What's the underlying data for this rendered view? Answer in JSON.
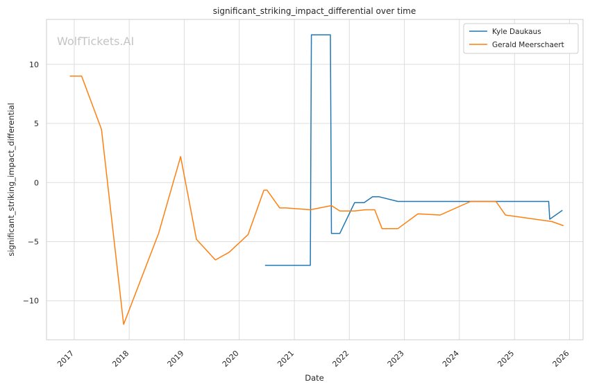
{
  "chart_data": {
    "type": "line",
    "title": "significant_striking_impact_differential over time",
    "xlabel": "Date",
    "ylabel": "significant_striking_impact_differential",
    "watermark": "WolfTickets.AI",
    "x_ticks": [
      "2017",
      "2018",
      "2019",
      "2020",
      "2021",
      "2022",
      "2023",
      "2024",
      "2025",
      "2026"
    ],
    "y_ticks": [
      10,
      5,
      0,
      -5,
      -10
    ],
    "y_tick_labels": [
      "10",
      "5",
      "0",
      "−5",
      "−10"
    ],
    "xlim": [
      "2016-07-01",
      "2026-04-01"
    ],
    "ylim": [
      -13.3,
      13.8
    ],
    "grid": true,
    "legend_position": "top-right",
    "series": [
      {
        "name": "Kyle Daukaus",
        "color": "#1f77b4",
        "points": [
          [
            "2020-06-20",
            -7.0
          ],
          [
            "2021-04-17",
            -7.0
          ],
          [
            "2021-04-24",
            12.5
          ],
          [
            "2021-08-28",
            12.5
          ],
          [
            "2021-09-04",
            -4.3
          ],
          [
            "2021-10-30",
            -4.3
          ],
          [
            "2022-02-05",
            -1.7
          ],
          [
            "2022-04-09",
            -1.7
          ],
          [
            "2022-06-04",
            -1.2
          ],
          [
            "2022-07-16",
            -1.2
          ],
          [
            "2022-11-19",
            -1.6
          ],
          [
            "2023-06-17",
            -1.6
          ],
          [
            "2024-03-16",
            -1.6
          ],
          [
            "2025-08-16",
            -1.6
          ],
          [
            "2025-08-23",
            -3.1
          ],
          [
            "2025-11-15",
            -2.35
          ]
        ]
      },
      {
        "name": "Gerald Meerschaert",
        "color": "#ff7f0e",
        "points": [
          [
            "2016-12-03",
            9.0
          ],
          [
            "2017-02-19",
            9.0
          ],
          [
            "2017-07-01",
            4.5
          ],
          [
            "2017-11-25",
            -12.0
          ],
          [
            "2018-07-15",
            -4.3
          ],
          [
            "2018-12-08",
            2.2
          ],
          [
            "2019-03-23",
            -4.8
          ],
          [
            "2019-07-27",
            -6.55
          ],
          [
            "2019-10-26",
            -5.9
          ],
          [
            "2020-02-29",
            -4.4
          ],
          [
            "2020-06-13",
            -0.65
          ],
          [
            "2020-07-04",
            -0.65
          ],
          [
            "2020-09-26",
            -2.15
          ],
          [
            "2020-11-07",
            -2.15
          ],
          [
            "2021-04-17",
            -2.3
          ],
          [
            "2021-09-04",
            -1.95
          ],
          [
            "2021-10-30",
            -2.4
          ],
          [
            "2022-02-05",
            -2.4
          ],
          [
            "2022-04-16",
            -2.3
          ],
          [
            "2022-06-18",
            -2.3
          ],
          [
            "2022-08-06",
            -3.9
          ],
          [
            "2022-11-19",
            -3.9
          ],
          [
            "2023-04-01",
            -2.65
          ],
          [
            "2023-08-26",
            -2.75
          ],
          [
            "2024-03-16",
            -1.6
          ],
          [
            "2024-08-31",
            -1.6
          ],
          [
            "2024-11-02",
            -2.75
          ],
          [
            "2025-09-06",
            -3.3
          ],
          [
            "2025-11-22",
            -3.65
          ]
        ]
      }
    ]
  }
}
